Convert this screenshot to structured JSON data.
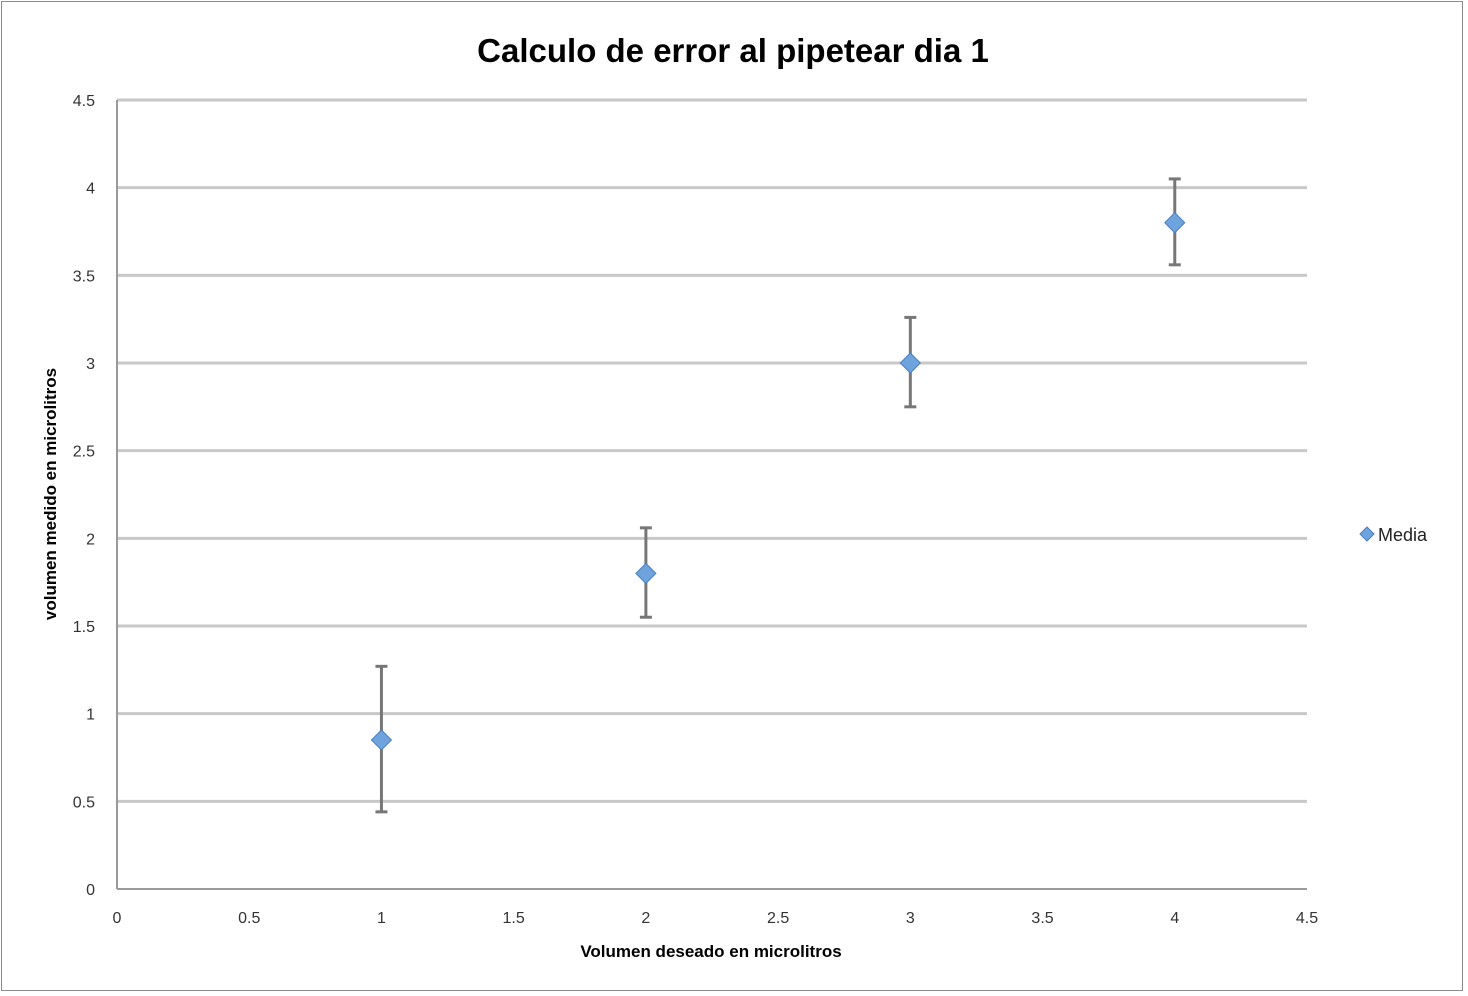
{
  "chart_data": {
    "type": "scatter",
    "title": "Calculo de error al pipetear dia 1",
    "xlabel": "Volumen deseado en microlitros",
    "ylabel": "volumen medido en microlitros",
    "xlim": [
      0,
      4.5
    ],
    "ylim": [
      0,
      4.5
    ],
    "x_ticks": [
      "0",
      "0.5",
      "1",
      "1.5",
      "2",
      "2.5",
      "3",
      "3.5",
      "4",
      "4.5"
    ],
    "y_ticks": [
      "0",
      "0.5",
      "1",
      "1.5",
      "2",
      "2.5",
      "3",
      "3.5",
      "4",
      "4.5"
    ],
    "grid": "horizontal",
    "legend_position": "right",
    "series": [
      {
        "name": "Media",
        "color": "#6fa3dd",
        "marker": "diamond",
        "x": [
          1,
          2,
          3,
          4
        ],
        "y": [
          0.85,
          1.8,
          3.0,
          3.8
        ],
        "error_low": [
          0.44,
          1.55,
          2.75,
          3.56
        ],
        "error_high": [
          1.27,
          2.06,
          3.26,
          4.05
        ]
      }
    ]
  }
}
